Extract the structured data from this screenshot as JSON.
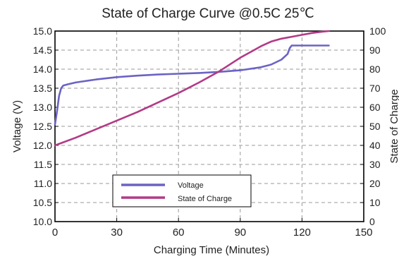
{
  "chart_data": {
    "type": "line",
    "title": "State of Charge Curve @0.5C 25℃",
    "xlabel": "Charging Time (Minutes)",
    "ylabel_left": "Voltage (V)",
    "ylabel_right": "State of Charge",
    "xlim": [
      0,
      150
    ],
    "ylim_left": [
      10.0,
      15.0
    ],
    "ylim_right": [
      0,
      100
    ],
    "x_ticks": [
      0,
      30,
      60,
      90,
      120,
      150
    ],
    "y_left_ticks": [
      "10.0",
      "10.5",
      "11.0",
      "11.5",
      "12.0",
      "12.5",
      "13.0",
      "13.5",
      "14.0",
      "14.5",
      "15.0"
    ],
    "y_right_ticks": [
      "0",
      "10",
      "20",
      "30",
      "40",
      "50",
      "60",
      "70",
      "80",
      "90",
      "100"
    ],
    "grid": true,
    "legend_position": "bottom-center",
    "series": [
      {
        "name": "Voltage",
        "axis": "left",
        "color": "#6b63c4",
        "points": [
          [
            0,
            12.55
          ],
          [
            1,
            12.9
          ],
          [
            2,
            13.3
          ],
          [
            3,
            13.5
          ],
          [
            4,
            13.57
          ],
          [
            6,
            13.6
          ],
          [
            10,
            13.65
          ],
          [
            20,
            13.73
          ],
          [
            30,
            13.79
          ],
          [
            40,
            13.83
          ],
          [
            50,
            13.86
          ],
          [
            60,
            13.88
          ],
          [
            70,
            13.9
          ],
          [
            80,
            13.93
          ],
          [
            90,
            13.97
          ],
          [
            100,
            14.05
          ],
          [
            105,
            14.12
          ],
          [
            110,
            14.25
          ],
          [
            113,
            14.4
          ],
          [
            114,
            14.55
          ],
          [
            115,
            14.62
          ],
          [
            120,
            14.62
          ],
          [
            133,
            14.62
          ]
        ]
      },
      {
        "name": "State of Charge",
        "axis": "right",
        "color": "#b23a86",
        "points": [
          [
            0,
            40
          ],
          [
            10,
            44
          ],
          [
            20,
            48.5
          ],
          [
            30,
            53
          ],
          [
            40,
            57.5
          ],
          [
            50,
            62.5
          ],
          [
            60,
            67.5
          ],
          [
            70,
            73
          ],
          [
            80,
            79
          ],
          [
            90,
            86
          ],
          [
            95,
            89
          ],
          [
            100,
            92
          ],
          [
            105,
            94.5
          ],
          [
            110,
            96
          ],
          [
            115,
            97
          ],
          [
            120,
            98
          ],
          [
            125,
            99
          ],
          [
            130,
            99.7
          ],
          [
            133,
            100
          ]
        ]
      }
    ]
  }
}
